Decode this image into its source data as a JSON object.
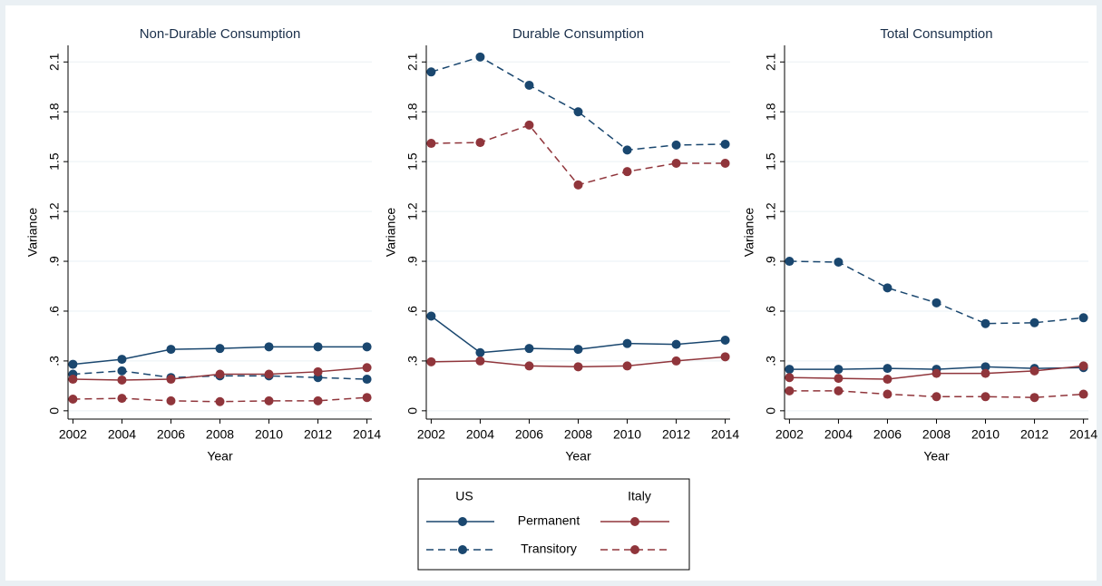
{
  "chart_data": [
    {
      "type": "line",
      "title": "Non-Durable Consumption",
      "xlabel": "Year",
      "ylabel": "Variance",
      "x": [
        2002,
        2004,
        2006,
        2008,
        2010,
        2012,
        2014
      ],
      "xlim": [
        2001.8,
        2014.2
      ],
      "xticks": [
        2002,
        2004,
        2006,
        2008,
        2010,
        2012,
        2014
      ],
      "ylim": [
        -0.05,
        2.2
      ],
      "yticks": [
        0,
        {
          "value": 0.3,
          "label": ".3"
        },
        {
          "value": 0.6,
          "label": ".6"
        },
        {
          "value": 0.9,
          "label": ".9"
        },
        1.2,
        1.5,
        1.8,
        2.1
      ],
      "grid": true,
      "series": [
        {
          "country": "US",
          "component": "Permanent",
          "color": "#1a476f",
          "style": "solid",
          "values": [
            0.28,
            0.31,
            0.37,
            0.375,
            0.385,
            0.385,
            0.385
          ]
        },
        {
          "country": "US",
          "component": "Transitory",
          "color": "#1a476f",
          "style": "dashed",
          "values": [
            0.22,
            0.24,
            0.2,
            0.21,
            0.21,
            0.2,
            0.19
          ]
        },
        {
          "country": "Italy",
          "component": "Permanent",
          "color": "#90353b",
          "style": "solid",
          "values": [
            0.19,
            0.185,
            0.19,
            0.22,
            0.22,
            0.235,
            0.26
          ]
        },
        {
          "country": "Italy",
          "component": "Transitory",
          "color": "#90353b",
          "style": "dashed",
          "values": [
            0.07,
            0.075,
            0.06,
            0.055,
            0.06,
            0.06,
            0.08
          ]
        }
      ]
    },
    {
      "type": "line",
      "title": "Durable Consumption",
      "xlabel": "Year",
      "ylabel": "Variance",
      "x": [
        2002,
        2004,
        2006,
        2008,
        2010,
        2012,
        2014
      ],
      "xlim": [
        2001.8,
        2014.2
      ],
      "xticks": [
        2002,
        2004,
        2006,
        2008,
        2010,
        2012,
        2014
      ],
      "ylim": [
        -0.05,
        2.2
      ],
      "yticks": [
        0,
        {
          "value": 0.3,
          "label": ".3"
        },
        {
          "value": 0.6,
          "label": ".6"
        },
        {
          "value": 0.9,
          "label": ".9"
        },
        1.2,
        1.5,
        1.8,
        2.1
      ],
      "grid": true,
      "series": [
        {
          "country": "US",
          "component": "Permanent",
          "color": "#1a476f",
          "style": "solid",
          "values": [
            0.57,
            0.35,
            0.375,
            0.37,
            0.405,
            0.4,
            0.425
          ]
        },
        {
          "country": "US",
          "component": "Transitory",
          "color": "#1a476f",
          "style": "dashed",
          "values": [
            2.04,
            2.13,
            1.96,
            1.8,
            1.57,
            1.6,
            1.605
          ]
        },
        {
          "country": "Italy",
          "component": "Permanent",
          "color": "#90353b",
          "style": "solid",
          "values": [
            0.295,
            0.3,
            0.27,
            0.265,
            0.27,
            0.3,
            0.325
          ]
        },
        {
          "country": "Italy",
          "component": "Transitory",
          "color": "#90353b",
          "style": "dashed",
          "values": [
            1.61,
            1.615,
            1.72,
            1.36,
            1.44,
            1.49,
            1.49
          ]
        }
      ]
    },
    {
      "type": "line",
      "title": "Total Consumption",
      "xlabel": "Year",
      "ylabel": "Variance",
      "x": [
        2002,
        2004,
        2006,
        2008,
        2010,
        2012,
        2014
      ],
      "xlim": [
        2001.8,
        2014.2
      ],
      "xticks": [
        2002,
        2004,
        2006,
        2008,
        2010,
        2012,
        2014
      ],
      "ylim": [
        -0.05,
        2.2
      ],
      "yticks": [
        0,
        {
          "value": 0.3,
          "label": ".3"
        },
        {
          "value": 0.6,
          "label": ".6"
        },
        {
          "value": 0.9,
          "label": ".9"
        },
        1.2,
        1.5,
        1.8,
        2.1
      ],
      "grid": true,
      "series": [
        {
          "country": "US",
          "component": "Permanent",
          "color": "#1a476f",
          "style": "solid",
          "values": [
            0.25,
            0.25,
            0.255,
            0.25,
            0.265,
            0.255,
            0.26
          ]
        },
        {
          "country": "US",
          "component": "Transitory",
          "color": "#1a476f",
          "style": "dashed",
          "values": [
            0.9,
            0.895,
            0.74,
            0.65,
            0.525,
            0.53,
            0.56
          ]
        },
        {
          "country": "Italy",
          "component": "Permanent",
          "color": "#90353b",
          "style": "solid",
          "values": [
            0.2,
            0.195,
            0.19,
            0.225,
            0.225,
            0.24,
            0.27
          ]
        },
        {
          "country": "Italy",
          "component": "Transitory",
          "color": "#90353b",
          "style": "dashed",
          "values": [
            0.12,
            0.12,
            0.1,
            0.085,
            0.085,
            0.08,
            0.1
          ]
        }
      ]
    }
  ],
  "legend": {
    "countries": [
      "US",
      "Italy"
    ],
    "components": [
      "Permanent",
      "Transitory"
    ]
  }
}
